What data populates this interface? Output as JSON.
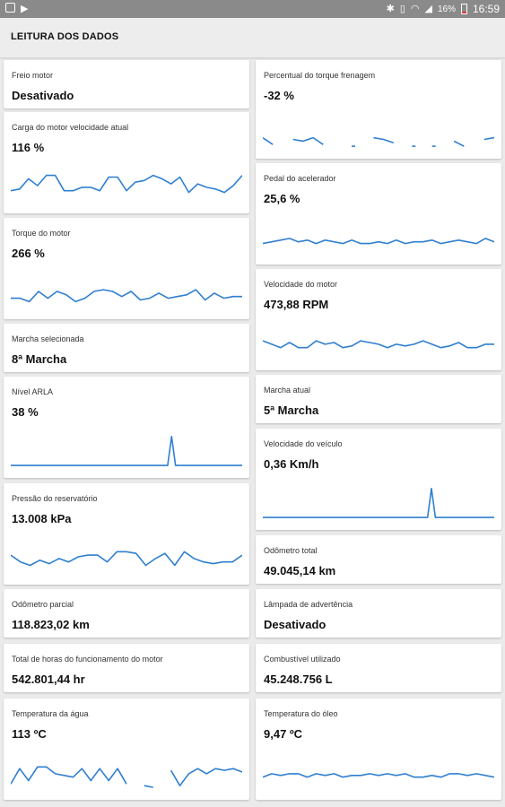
{
  "status_bar": {
    "battery": "16%",
    "time": "16:59"
  },
  "app_bar": {
    "title": "LEITURA DOS DADOS"
  },
  "colors": {
    "sparkline": "#2f7fd0",
    "low_battery": "#e53935"
  },
  "cards": [
    {
      "label": "Freio motor",
      "value": "Desativado"
    },
    {
      "label": "Percentual do torque frenagem",
      "value": "-32 %",
      "series": [
        0.3,
        0.1,
        null,
        0.25,
        0.2,
        0.3,
        0.1,
        null,
        null,
        0.05,
        null,
        0.3,
        0.25,
        0.15,
        null,
        0.05,
        null,
        0.05,
        null,
        0.2,
        0.05,
        null,
        0.25,
        0.3
      ]
    },
    {
      "label": "Carga do motor velocidade atual",
      "value": "116 %",
      "series": [
        0.35,
        0.4,
        0.7,
        0.5,
        0.8,
        0.8,
        0.35,
        0.35,
        0.45,
        0.45,
        0.35,
        0.75,
        0.75,
        0.35,
        0.6,
        0.65,
        0.8,
        0.7,
        0.55,
        0.75,
        0.3,
        0.55,
        0.45,
        0.4,
        0.3,
        0.5,
        0.8
      ]
    },
    {
      "label": "Pedal do acelerador",
      "value": "25,6 %",
      "series": [
        0.3,
        0.35,
        0.4,
        0.45,
        0.35,
        0.4,
        0.3,
        0.4,
        0.35,
        0.3,
        0.4,
        0.3,
        0.3,
        0.35,
        0.3,
        0.4,
        0.3,
        0.35,
        0.35,
        0.4,
        0.3,
        0.35,
        0.4,
        0.35,
        0.3,
        0.45,
        0.35
      ]
    },
    {
      "label": "Torque do motor",
      "value": "266 %",
      "series": [
        0.3,
        0.3,
        0.2,
        0.5,
        0.3,
        0.5,
        0.4,
        0.2,
        0.3,
        0.5,
        0.55,
        0.5,
        0.35,
        0.5,
        0.25,
        0.3,
        0.45,
        0.3,
        0.35,
        0.4,
        0.55,
        0.25,
        0.45,
        0.3,
        0.35,
        0.35
      ]
    },
    {
      "label": "Velocidade do motor",
      "value": "473,88 RPM",
      "series": [
        0.55,
        0.45,
        0.35,
        0.5,
        0.35,
        0.35,
        0.55,
        0.45,
        0.5,
        0.35,
        0.4,
        0.55,
        0.5,
        0.45,
        0.35,
        0.45,
        0.4,
        0.45,
        0.55,
        0.45,
        0.35,
        0.4,
        0.5,
        0.35,
        0.35,
        0.45,
        0.45
      ]
    },
    {
      "label": "Marcha selecionada",
      "value": "8ª Marcha"
    },
    {
      "label": "Marcha atual",
      "value": "5ª Marcha"
    },
    {
      "label": "Nível ARLA",
      "value": "38 %",
      "series": [
        0.05,
        0.05,
        0.05,
        0.05,
        0.05,
        0.05,
        0.05,
        0.05,
        0.05,
        0.05,
        0.05,
        0.05,
        0.05,
        0.05,
        0.05,
        0.05,
        0.05,
        0.05,
        0.05,
        0.05,
        0.05,
        0.05,
        0.05,
        0.05,
        0.05,
        0.05,
        0.05,
        0.05,
        0.05,
        0.05,
        0.05,
        0.05,
        0.05,
        0.05,
        0.05,
        0.05,
        0.05,
        0.05,
        0.05,
        0.05,
        0.05,
        0.9,
        0.05,
        0.05,
        0.05,
        0.05,
        0.05,
        0.05,
        0.05,
        0.05,
        0.05,
        0.05,
        0.05,
        0.05,
        0.05,
        0.05,
        0.05,
        0.05,
        0.05,
        0.05
      ]
    },
    {
      "label": "Velocidade do veículo",
      "value": "0,36 Km/h",
      "series": [
        0.05,
        0.05,
        0.05,
        0.05,
        0.05,
        0.05,
        0.05,
        0.05,
        0.05,
        0.05,
        0.05,
        0.05,
        0.05,
        0.05,
        0.05,
        0.05,
        0.05,
        0.05,
        0.05,
        0.05,
        0.05,
        0.05,
        0.05,
        0.05,
        0.05,
        0.05,
        0.05,
        0.05,
        0.05,
        0.05,
        0.05,
        0.05,
        0.05,
        0.05,
        0.05,
        0.05,
        0.05,
        0.05,
        0.05,
        0.05,
        0.05,
        0.05,
        0.05,
        0.9,
        0.05,
        0.05,
        0.05,
        0.05,
        0.05,
        0.05,
        0.05,
        0.05,
        0.05,
        0.05,
        0.05,
        0.05,
        0.05,
        0.05,
        0.05,
        0.05
      ]
    },
    {
      "label": "Pressão do reservatório",
      "value": "13.008 kPa",
      "series": [
        0.55,
        0.35,
        0.25,
        0.4,
        0.3,
        0.45,
        0.35,
        0.5,
        0.55,
        0.55,
        0.35,
        0.65,
        0.65,
        0.6,
        0.25,
        0.45,
        0.6,
        0.25,
        0.65,
        0.45,
        0.35,
        0.3,
        0.35,
        0.35,
        0.55
      ]
    },
    {
      "label": "Odômetro total",
      "value": "49.045,14 km"
    },
    {
      "label": "Odômetro parcial",
      "value": "118.823,02 km"
    },
    {
      "label": "Lâmpada de advertência",
      "value": "Desativado"
    },
    {
      "label": "Total de horas do funcionamento do motor",
      "value": "542.801,44 hr"
    },
    {
      "label": "Combustível utilizado",
      "value": "45.248.756 L"
    },
    {
      "label": "Temperatura da água",
      "value": "113 ºC",
      "series": [
        0.15,
        0.6,
        0.25,
        0.65,
        0.65,
        0.45,
        0.4,
        0.35,
        0.6,
        0.25,
        0.6,
        0.25,
        0.6,
        0.15,
        null,
        0.1,
        0.05,
        null,
        0.55,
        0.1,
        0.45,
        0.6,
        0.45,
        0.6,
        0.55,
        0.6,
        0.5
      ]
    },
    {
      "label": "Temperatura do óleo",
      "value": "9,47 ºC",
      "series": [
        0.35,
        0.45,
        0.4,
        0.45,
        0.45,
        0.35,
        0.45,
        0.4,
        0.45,
        0.35,
        0.4,
        0.4,
        0.45,
        0.4,
        0.45,
        0.4,
        0.45,
        0.35,
        0.35,
        0.4,
        0.35,
        0.45,
        0.45,
        0.4,
        0.45,
        0.4,
        0.35
      ]
    }
  ]
}
